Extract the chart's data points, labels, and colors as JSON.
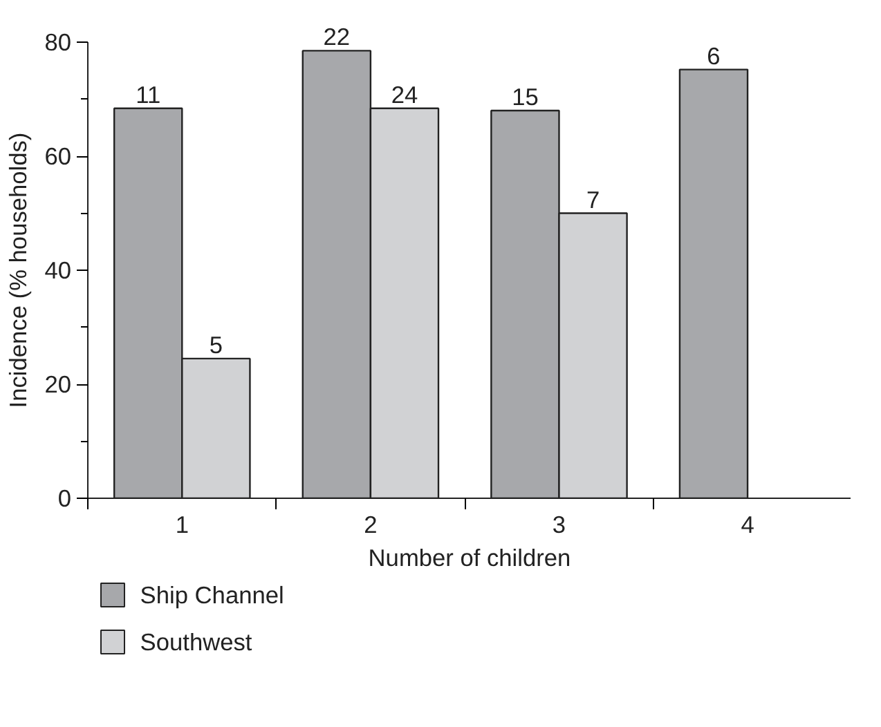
{
  "chart_data": {
    "type": "bar",
    "xlabel": "Number of children",
    "ylabel": "Incidence (% households)",
    "categories": [
      "1",
      "2",
      "3",
      "4"
    ],
    "series": [
      {
        "name": "Ship Channel",
        "color": "#a7a8ab",
        "values": [
          68.4,
          78.5,
          68.0,
          75.2
        ]
      },
      {
        "name": "Southwest",
        "color": "#d1d2d4",
        "values": [
          24.5,
          68.4,
          50.0,
          null
        ]
      }
    ],
    "ylim": [
      0,
      80
    ],
    "yticks": [
      0,
      {
        "value": 10,
        "label": null
      },
      20,
      {
        "value": 30,
        "label": null
      },
      40,
      {
        "value": 50,
        "label": null
      },
      60,
      {
        "value": 70,
        "label": null
      },
      80
    ],
    "annotations": [
      {
        "text": "11",
        "x": "1",
        "y": 68.4
      },
      {
        "text": "5",
        "x": "1",
        "y": 24.5
      },
      {
        "text": "22",
        "x": "2",
        "y": 78.5
      },
      {
        "text": "24",
        "x": "2",
        "y": 68.4
      },
      {
        "text": "15",
        "x": "3",
        "y": 68.0
      },
      {
        "text": "7",
        "x": "3",
        "y": 50.0
      },
      {
        "text": "6",
        "x": "4",
        "y": 75.2
      }
    ],
    "legend": "bottom left",
    "grid": false
  }
}
